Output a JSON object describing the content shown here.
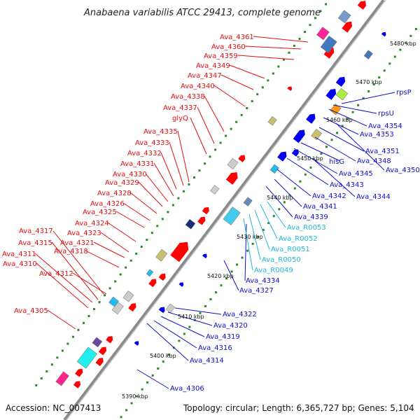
{
  "title": "Anabaena variabilis ATCC 29413, complete genome",
  "footer": {
    "accession": "Accession: NC_007413",
    "summary": "Topology: circular; Length: 6,365,727 bp; Genes: 5,104"
  },
  "colors": {
    "forward_label": "#e01010",
    "reverse_label": "#1010c8",
    "rna_label": "#20b8d8",
    "backbone": "#8a8a8a",
    "tick": "#2a8a2a",
    "forward_feature": "#ff0000",
    "reverse_feature": "#0000ee"
  },
  "scale_labels": [
    "5390 kbp",
    "5400 kbp",
    "5410 kbp",
    "5420 kbp",
    "5430 kbp",
    "5440 kbp",
    "5450 kbp",
    "5460 kbp",
    "5470 kbp",
    "5480 kbp"
  ],
  "forward_labels": [
    "Ava_4361",
    "Ava_4360",
    "Ava_4359",
    "Ava_4349",
    "Ava_4347",
    "Ava_4340",
    "Ava_4338",
    "Ava_4337",
    "glyQ",
    "Ava_4335",
    "Ava_4333",
    "Ava_4332",
    "Ava_4331",
    "Ava_4330",
    "Ava_4329",
    "Ava_4328",
    "Ava_4326",
    "Ava_4325",
    "Ava_4324",
    "Ava_4323",
    "Ava_4321",
    "Ava_4318",
    "Ava_4317",
    "Ava_4315",
    "Ava_4311",
    "Ava_4310",
    "Ava_4312",
    "Ava_4305"
  ],
  "reverse_labels": [
    "rpsP",
    "rpsU",
    "Ava_4354",
    "Ava_4353",
    "Ava_4351",
    "Ava_4348",
    "Ava_4350",
    "hisG",
    "Ava_4345",
    "Ava_4343",
    "Ava_4342",
    "Ava_4344",
    "Ava_4341",
    "Ava_4339",
    "Ava_4334",
    "Ava_4327",
    "Ava_4322",
    "Ava_4320",
    "Ava_4319",
    "Ava_4316",
    "Ava_4314",
    "Ava_4306"
  ],
  "rna_labels": [
    "Ava_R0053",
    "Ava_R0052",
    "Ava_R0051",
    "Ava_R0050",
    "Ava_R0049"
  ]
}
